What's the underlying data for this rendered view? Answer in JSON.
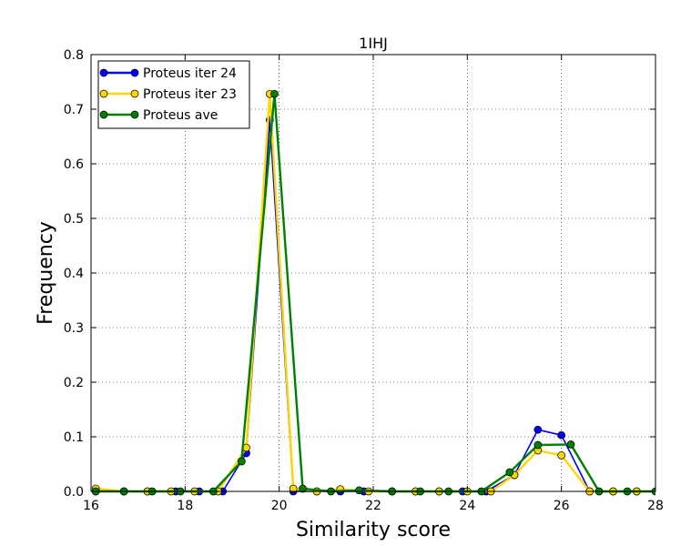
{
  "chart_data": {
    "type": "line",
    "title": "1IHJ",
    "xlabel": "Similarity score",
    "ylabel": "Frequency",
    "xlim": [
      16,
      28
    ],
    "ylim": [
      0,
      0.8
    ],
    "xticks": [
      "16",
      "18",
      "20",
      "22",
      "24",
      "26",
      "28"
    ],
    "yticks": [
      "0.0",
      "0.1",
      "0.2",
      "0.3",
      "0.4",
      "0.5",
      "0.6",
      "0.7",
      "0.8"
    ],
    "grid": true,
    "legend_position": "top-left",
    "series": [
      {
        "name": "Proteus iter 24",
        "color": "#0000ff",
        "x": [
          16.1,
          16.7,
          17.2,
          17.8,
          18.3,
          18.8,
          19.3,
          19.8,
          20.3,
          20.8,
          21.3,
          21.8,
          22.4,
          22.9,
          23.4,
          23.9,
          24.4,
          25.0,
          25.5,
          26.0,
          26.6,
          27.1,
          27.6,
          28.1
        ],
        "y": [
          0.0,
          0.0,
          0.0,
          0.0,
          0.0,
          0.0,
          0.07,
          0.68,
          0.0,
          0.0,
          0.0,
          0.0,
          0.0,
          0.0,
          0.0,
          0.0,
          0.0,
          0.03,
          0.113,
          0.103,
          0.0,
          0.0,
          0.0,
          0.0
        ]
      },
      {
        "name": "Proteus iter 23",
        "color": "#ffd700",
        "x": [
          16.1,
          16.7,
          17.2,
          17.7,
          18.2,
          18.7,
          19.3,
          19.8,
          20.3,
          20.8,
          21.3,
          21.9,
          22.4,
          22.9,
          23.4,
          24.0,
          24.5,
          25.0,
          25.5,
          26.0,
          26.6,
          27.1,
          27.6,
          28.1
        ],
        "y": [
          0.005,
          0.0,
          0.0,
          0.0,
          0.0,
          0.0,
          0.08,
          0.728,
          0.005,
          0.0,
          0.004,
          0.0,
          0.0,
          0.0,
          0.0,
          0.0,
          0.0,
          0.03,
          0.075,
          0.066,
          0.0,
          0.0,
          0.0,
          0.0
        ]
      },
      {
        "name": "Proteus ave",
        "color": "#008000",
        "x": [
          16.1,
          16.7,
          17.3,
          17.9,
          18.6,
          19.2,
          19.9,
          20.5,
          21.1,
          21.7,
          22.4,
          23.0,
          23.6,
          24.3,
          24.9,
          25.5,
          26.2,
          26.8,
          27.4,
          28.0
        ],
        "y": [
          0.0,
          0.0,
          0.0,
          0.0,
          0.0,
          0.055,
          0.728,
          0.005,
          0.0,
          0.002,
          0.0,
          0.0,
          0.0,
          0.0,
          0.035,
          0.085,
          0.086,
          0.0,
          0.0,
          0.0
        ]
      }
    ]
  }
}
